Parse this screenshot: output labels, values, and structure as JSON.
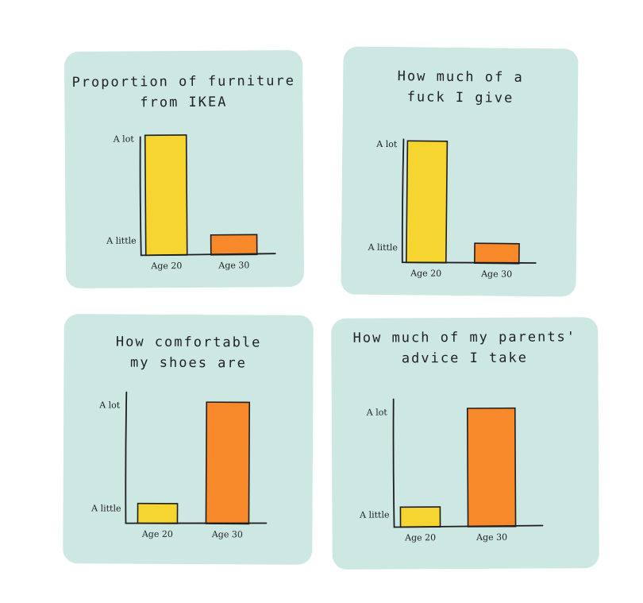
{
  "colors": {
    "panel": "#cde7e3",
    "age20": "#f6d530",
    "age30": "#f7892a",
    "ink": "#1e1e1e"
  },
  "chart_data": [
    {
      "type": "bar",
      "title_lines": [
        "Proportion of furniture",
        "from IKEA"
      ],
      "categories": [
        "Age 20",
        "Age 30"
      ],
      "values": [
        1.0,
        0.18
      ],
      "y_ticks": [
        "A lot",
        "A little"
      ],
      "ylim": [
        0,
        1
      ]
    },
    {
      "type": "bar",
      "title_lines": [
        "How much of a",
        "fuck I give"
      ],
      "categories": [
        "Age 20",
        "Age 30"
      ],
      "values": [
        1.0,
        0.18
      ],
      "y_ticks": [
        "A lot",
        "A little"
      ],
      "ylim": [
        0,
        1
      ]
    },
    {
      "type": "bar",
      "title_lines": [
        "How comfortable",
        "my shoes are"
      ],
      "categories": [
        "Age 20",
        "Age 30"
      ],
      "values": [
        0.18,
        1.0
      ],
      "y_ticks": [
        "A lot",
        "A little"
      ],
      "ylim": [
        0,
        1
      ]
    },
    {
      "type": "bar",
      "title_lines": [
        "How much of my parents'",
        "advice I take"
      ],
      "categories": [
        "Age 20",
        "Age 30"
      ],
      "values": [
        0.2,
        1.0
      ],
      "y_ticks": [
        "A lot",
        "A little"
      ],
      "ylim": [
        0,
        1
      ]
    }
  ]
}
